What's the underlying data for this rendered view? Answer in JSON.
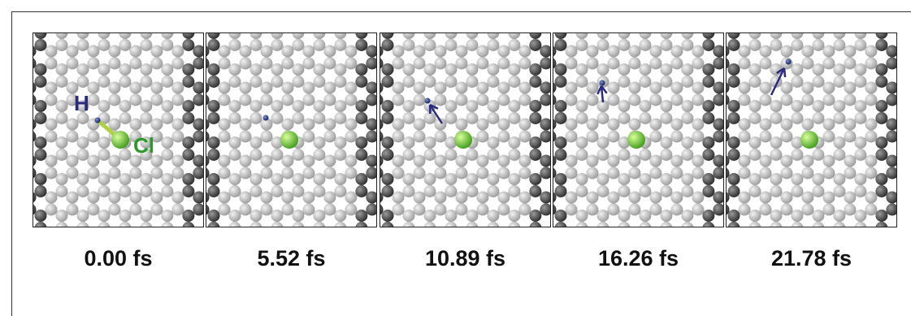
{
  "panels": [
    {
      "time": "0.00 fs"
    },
    {
      "time": "5.52 fs"
    },
    {
      "time": "10.89 fs"
    },
    {
      "time": "16.26 fs"
    },
    {
      "time": "21.78 fs"
    }
  ],
  "labels": {
    "h": "H",
    "cl": "Cl"
  }
}
